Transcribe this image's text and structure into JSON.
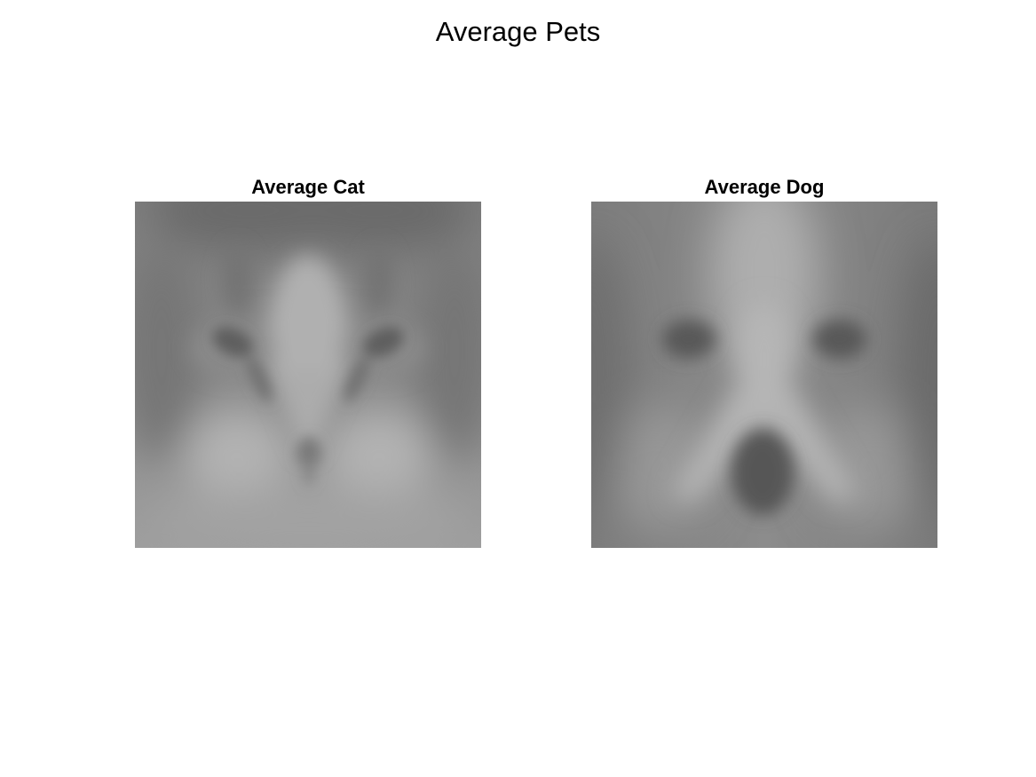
{
  "figure": {
    "title": "Average Pets"
  },
  "panels": [
    {
      "title": "Average Cat",
      "image": "average-cat-face"
    },
    {
      "title": "Average Dog",
      "image": "average-dog-face"
    }
  ]
}
